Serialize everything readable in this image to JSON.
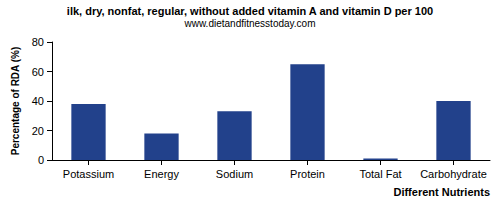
{
  "chart_data": {
    "type": "bar",
    "title": "ilk, dry, nonfat, regular, without added vitamin A and vitamin D per 100",
    "subtitle": "www.dietandfitnesstoday.com",
    "x_label": "Different Nutrients",
    "y_label": "Percentage of RDA (%)",
    "categories": [
      "Potassium",
      "Energy",
      "Sodium",
      "Protein",
      "Total Fat",
      "Carbohydrate"
    ],
    "values": [
      38,
      18,
      33,
      65,
      1,
      40
    ],
    "color": "#22418b",
    "ylim": [
      0,
      80
    ],
    "yticks": [
      0,
      20,
      40,
      60,
      80
    ],
    "grid": false
  }
}
